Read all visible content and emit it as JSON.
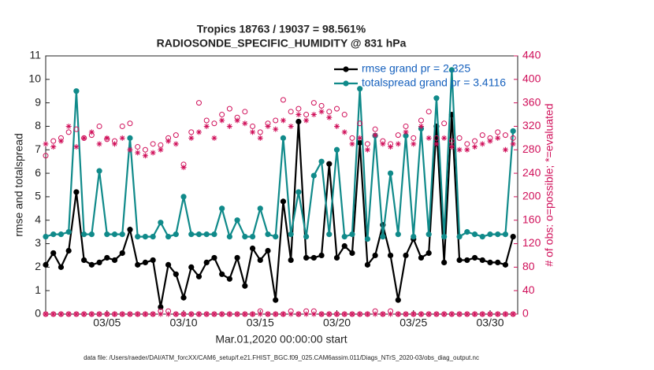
{
  "chart_data": {
    "type": "line",
    "title": "Tropics 18763 / 19037 = 98.561%",
    "subtitle": "RADIOSONDE_SPECIFIC_HUMIDITY @ 831 hPa",
    "x_label": "Mar.01,2020 00:00:00 start",
    "y_label": "rmse and totalspread",
    "y2_label": "# of obs: o=possible; *=evaluated",
    "footnote": "data file: /Users/raeder/DAI/ATM_forcXX/CAM6_setup/f.e21.FHIST_BGC.f09_025.CAM6assim.011/Diags_NTrS_2020-03/obs_diag_output.nc",
    "xlim": [
      1,
      31.8
    ],
    "ylim": [
      0,
      11
    ],
    "y2lim": [
      0,
      440
    ],
    "xticks": [
      {
        "value": 5,
        "label": "03/05"
      },
      {
        "value": 10,
        "label": "03/10"
      },
      {
        "value": 15,
        "label": "03/15"
      },
      {
        "value": 20,
        "label": "03/20"
      },
      {
        "value": 25,
        "label": "03/25"
      },
      {
        "value": 30,
        "label": "03/30"
      }
    ],
    "yticks": [
      0,
      1,
      2,
      3,
      4,
      5,
      6,
      7,
      8,
      9,
      10,
      11
    ],
    "y2ticks": [
      0,
      40,
      80,
      120,
      160,
      200,
      240,
      280,
      320,
      360,
      400,
      440
    ],
    "legend": "upper right",
    "x": [
      1,
      1.5,
      2,
      2.5,
      3,
      3.5,
      4,
      4.5,
      5,
      5.5,
      6,
      6.5,
      7,
      7.5,
      8,
      8.5,
      9,
      9.5,
      10,
      10.5,
      11,
      11.5,
      12,
      12.5,
      13,
      13.5,
      14,
      14.5,
      15,
      15.5,
      16,
      16.5,
      17,
      17.5,
      18,
      18.5,
      19,
      19.5,
      20,
      20.5,
      21,
      21.5,
      22,
      22.5,
      23,
      23.5,
      24,
      24.5,
      25,
      25.5,
      26,
      26.5,
      27,
      27.5,
      28,
      28.5,
      29,
      29.5,
      30,
      30.5,
      31,
      31.5
    ],
    "series": [
      {
        "name": "rmse grand pr = 2.325",
        "color": "#000000",
        "marker": "dot",
        "values": [
          2.1,
          2.6,
          2.0,
          2.7,
          5.2,
          2.3,
          2.1,
          2.2,
          2.4,
          2.3,
          2.6,
          3.6,
          2.1,
          2.2,
          2.3,
          0.3,
          2.1,
          1.7,
          0.7,
          2.0,
          1.6,
          2.2,
          2.4,
          1.7,
          1.5,
          2.4,
          1.2,
          2.8,
          2.3,
          2.7,
          0.6,
          4.8,
          2.3,
          8.2,
          2.4,
          2.4,
          2.5,
          6.4,
          2.4,
          2.9,
          2.6,
          7.3,
          2.1,
          2.5,
          3.8,
          2.5,
          0.6,
          2.5,
          3.2,
          2.4,
          2.6,
          8.0,
          2.2,
          8.5,
          2.3,
          2.3,
          2.4,
          2.3,
          2.2,
          2.2,
          2.1,
          3.3
        ]
      },
      {
        "name": "totalspread grand pr = 3.4116",
        "color": "#108a8a",
        "marker": "dot",
        "values": [
          3.3,
          3.4,
          3.4,
          3.5,
          9.5,
          3.4,
          3.4,
          6.1,
          3.4,
          3.4,
          3.4,
          7.5,
          3.3,
          3.3,
          3.3,
          3.9,
          3.3,
          3.4,
          5.0,
          3.4,
          3.4,
          3.4,
          3.4,
          4.5,
          3.3,
          4.0,
          3.3,
          3.3,
          4.5,
          3.4,
          3.3,
          7.5,
          3.4,
          5.2,
          3.3,
          5.9,
          6.5,
          3.4,
          7.0,
          3.3,
          3.4,
          9.6,
          3.2,
          7.6,
          3.3,
          6.0,
          3.4,
          7.6,
          3.3,
          7.9,
          3.4,
          9.2,
          3.3,
          10.4,
          3.3,
          3.5,
          3.4,
          3.3,
          3.4,
          3.4,
          3.4,
          7.8
        ]
      },
      {
        "color": "#d0105a",
        "marker": "o",
        "axis": "y2",
        "values": [
          270,
          295,
          300,
          310,
          315,
          300,
          305,
          320,
          298,
          295,
          320,
          325,
          285,
          280,
          290,
          288,
          300,
          305,
          255,
          310,
          360,
          330,
          325,
          340,
          350,
          335,
          345,
          320,
          310,
          325,
          330,
          365,
          345,
          350,
          340,
          360,
          355,
          345,
          350,
          340,
          300,
          325,
          290,
          315,
          295,
          290,
          305,
          320,
          300,
          330,
          345,
          300,
          325,
          295,
          300,
          290,
          295,
          305,
          300,
          310,
          305,
          300
        ]
      },
      {
        "color": "#d0105a",
        "marker": "star",
        "axis": "y2",
        "values": [
          290,
          285,
          295,
          320,
          285,
          300,
          310,
          290,
          300,
          290,
          300,
          280,
          275,
          270,
          275,
          280,
          295,
          290,
          250,
          300,
          310,
          320,
          300,
          330,
          320,
          330,
          325,
          310,
          300,
          320,
          315,
          330,
          320,
          340,
          330,
          340,
          345,
          335,
          320,
          310,
          290,
          300,
          280,
          305,
          290,
          285,
          290,
          310,
          290,
          320,
          300,
          290,
          300,
          285,
          280,
          280,
          285,
          290,
          295,
          300,
          280,
          290
        ]
      },
      {
        "color": "#d0105a",
        "marker": "o",
        "axis": "y2",
        "values": [
          0,
          0,
          0,
          0,
          0,
          0,
          0,
          0,
          0,
          0,
          0,
          0,
          0,
          0,
          0,
          5,
          5,
          0,
          0,
          0,
          0,
          0,
          0,
          0,
          0,
          0,
          0,
          0,
          5,
          0,
          0,
          0,
          5,
          0,
          5,
          5,
          0,
          0,
          0,
          0,
          0,
          0,
          0,
          5,
          0,
          5,
          0,
          0,
          0,
          0,
          0,
          0,
          0,
          0,
          0,
          0,
          0,
          0,
          0,
          0,
          0,
          0
        ]
      },
      {
        "color": "#d0105a",
        "marker": "star",
        "axis": "y2",
        "values": [
          0,
          0,
          0,
          0,
          0,
          0,
          0,
          0,
          0,
          0,
          0,
          0,
          0,
          0,
          0,
          0,
          0,
          0,
          0,
          0,
          0,
          0,
          0,
          0,
          0,
          0,
          0,
          0,
          0,
          0,
          0,
          0,
          0,
          0,
          0,
          0,
          0,
          0,
          0,
          0,
          0,
          0,
          0,
          0,
          0,
          0,
          0,
          0,
          0,
          0,
          0,
          0,
          0,
          0,
          0,
          0,
          0,
          0,
          0,
          0,
          0,
          0
        ]
      }
    ]
  }
}
